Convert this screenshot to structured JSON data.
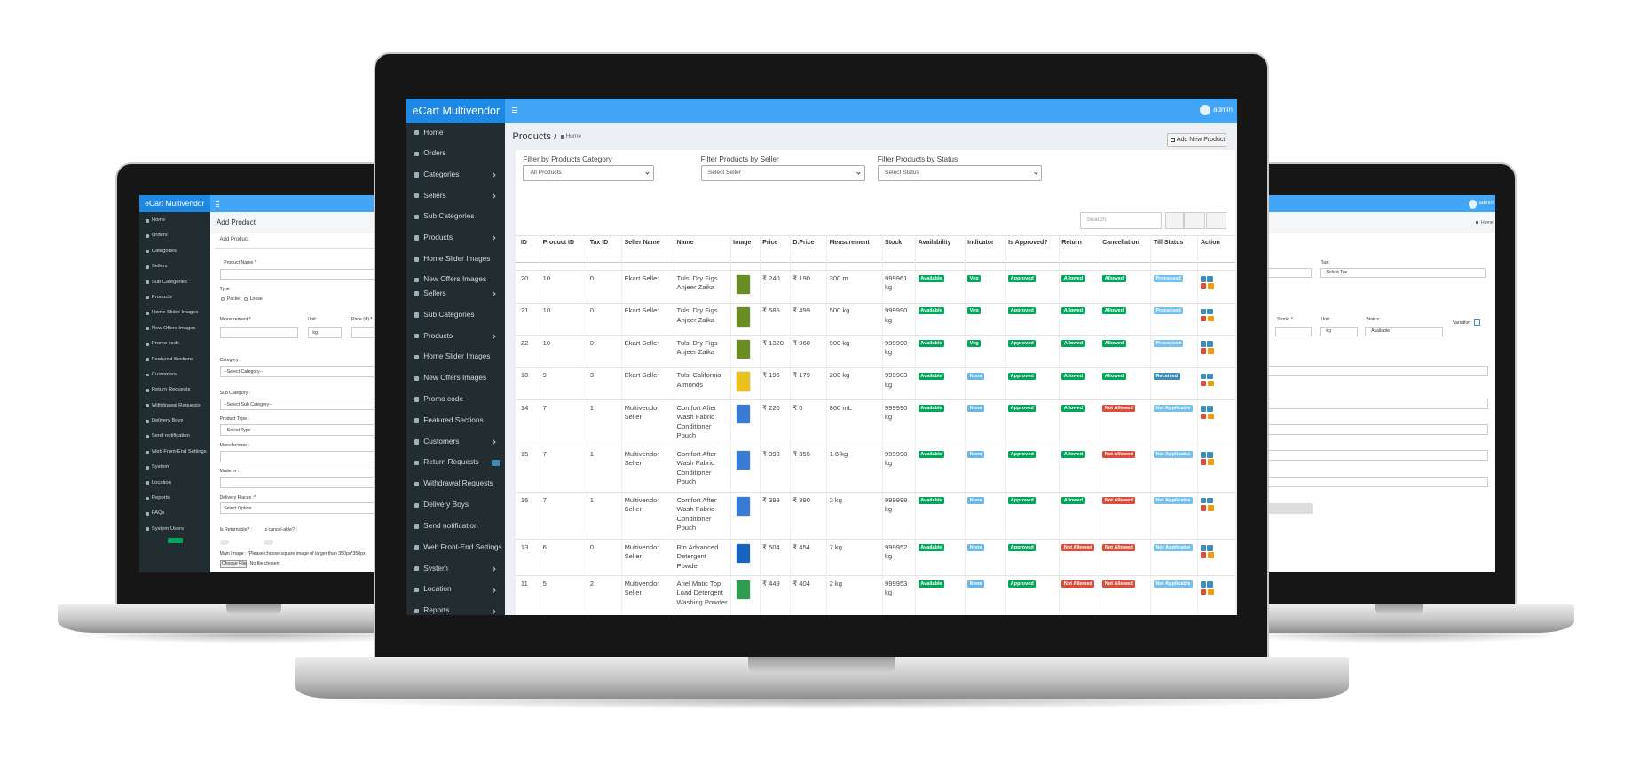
{
  "main": {
    "brand": "eCart Multivendor",
    "user": "admin",
    "sidebar": [
      "Home",
      "Orders",
      "Categories",
      "Sellers",
      "Sub Categories",
      "Products",
      "Home Slider Images",
      "New Offers Images",
      "Sellers",
      "Sub Categories",
      "Products",
      "Home Slider Images",
      "New Offers Images",
      "Promo code",
      "Featured Sections",
      "Customers",
      "Return Requests",
      "Withdrawal Requests",
      "Delivery Boys",
      "Send notification",
      "Web Front-End Settings",
      "System",
      "Location",
      "Reports"
    ],
    "page_title": "Products /",
    "breadcrumb": "Home",
    "add_button": "Add New Product",
    "filters": [
      {
        "label": "Filter by Products Category",
        "placeholder": "All Products"
      },
      {
        "label": "Filter Products by Seller",
        "placeholder": "Select Seller"
      },
      {
        "label": "Filter Products by Status",
        "placeholder": "Select Status"
      }
    ],
    "search_placeholder": "Search",
    "badge_colors": {
      "Available": "#00a65a",
      "Veg": "#00a65a",
      "Approved": "#00a65a",
      "Allowed": "#00a65a",
      "Not Allowed": "#dd4b39",
      "None": "#67b7e9",
      "Processed": "#74c0f0",
      "Not Applicable": "#74c0f0",
      "Received": "#3c8dbc"
    },
    "table": {
      "columns": [
        "ID",
        "Product ID",
        "Tax ID",
        "Seller Name",
        "Name",
        "Image",
        "Price",
        "D.Price",
        "Measurement",
        "Stock",
        "Availability",
        "Indicator",
        "Is Approved?",
        "Return",
        "Cancellation",
        "Till Status",
        "Action"
      ],
      "rows": [
        [
          20,
          10,
          0,
          "Ekart Seller",
          "Tulsi Dry Figs Anjeer Zaika",
          null,
          "₹ 240",
          "₹ 190",
          "300 m",
          "999961 kg",
          "Available",
          "Veg",
          "Approved",
          "Allowed",
          "Allowed",
          "Processed",
          null
        ],
        [
          21,
          10,
          0,
          "Ekart Seller",
          "Tulsi Dry Figs Anjeer Zaika",
          null,
          "₹ 585",
          "₹ 499",
          "500 kg",
          "999990 kg",
          "Available",
          "Veg",
          "Approved",
          "Allowed",
          "Allowed",
          "Processed",
          null
        ],
        [
          22,
          10,
          0,
          "Ekart Seller",
          "Tulsi Dry Figs Anjeer Zaika",
          null,
          "₹ 1320",
          "₹ 960",
          "900 kg",
          "999990 kg",
          "Available",
          "Veg",
          "Approved",
          "Allowed",
          "Allowed",
          "Processed",
          null
        ],
        [
          18,
          9,
          3,
          "Ekart Seller",
          "Tulsi California Almonds",
          null,
          "₹ 195",
          "₹ 179",
          "200 kg",
          "999903 kg",
          "Available",
          "None",
          "Approved",
          "Allowed",
          "Allowed",
          "Received",
          null
        ],
        [
          14,
          7,
          1,
          "Multivendor Seller",
          "Comfort After Wash Fabric Conditioner Pouch",
          null,
          "₹ 220",
          "₹ 0",
          "860 mL",
          "999990 kg",
          "Available",
          "None",
          "Approved",
          "Allowed",
          "Not Allowed",
          "Not Applicable",
          null
        ],
        [
          15,
          7,
          1,
          "Multivendor Seller",
          "Comfort After Wash Fabric Conditioner Pouch",
          null,
          "₹ 390",
          "₹ 355",
          "1.6 kg",
          "999998 kg",
          "Available",
          "None",
          "Approved",
          "Allowed",
          "Not Allowed",
          "Not Applicable",
          null
        ],
        [
          16,
          7,
          1,
          "Multivendor Seller",
          "Comfort After Wash Fabric Conditioner Pouch",
          null,
          "₹ 399",
          "₹ 390",
          "2 kg",
          "999998 kg",
          "Available",
          "None",
          "Approved",
          "Allowed",
          "Not Allowed",
          "Not Applicable",
          null
        ],
        [
          13,
          6,
          0,
          "Multivendor Seller",
          "Rin Advanced Detergent Powder",
          null,
          "₹ 504",
          "₹ 454",
          "7 kg",
          "999952 kg",
          "Available",
          "None",
          "Approved",
          "Not Allowed",
          "Not Allowed",
          "Not Applicable",
          null
        ],
        [
          11,
          5,
          2,
          "Multivendor Seller",
          "Ariel Matic Top Load Detergent Washing Powder",
          null,
          "₹ 449",
          "₹ 404",
          "2 kg",
          "999953 kg",
          "Available",
          "None",
          "Approved",
          "Not Allowed",
          "Not Allowed",
          "Not Applicable",
          null
        ]
      ]
    }
  },
  "left": {
    "brand": "eCart Multivendor",
    "sidebar": [
      "Home",
      "Orders",
      "Categories",
      "Sellers",
      "Sub Categories",
      "Products",
      "Home Slider Images",
      "New Offers Images",
      "Promo code",
      "Featured Sections",
      "Customers",
      "Return Requests",
      "Withdrawal Requests",
      "Delivery Boys",
      "Send notification",
      "Web Front-End Settings",
      "System",
      "Location",
      "Reports",
      "FAQs",
      "System Users"
    ],
    "page_title": "Add Product",
    "box_title": "Add Product",
    "form": [
      "Product Name *",
      "Type",
      "Packet",
      "Loose",
      "Measurement *",
      "Unit:",
      "Price (₹) *",
      "kg",
      "Category :",
      "--Select Category--",
      "Sub Category :",
      "--Select Sub Category--",
      "Product Type :",
      "--Select Type--",
      "Manufacturer :",
      "Made In :",
      "Delivery Places :*",
      "Select Option",
      "Is Returnable? :",
      "Is cancel-able? :",
      "Main Image : *Please choose square image of larger than 350px*350px",
      "Choose File",
      "No file chosen"
    ]
  },
  "right": {
    "user": "admin",
    "breadcrumb": "Home",
    "form": [
      "Tax:",
      "Select Tax",
      "Stock: *",
      "Unit:",
      "Status:",
      "kg",
      "Available",
      "Variation"
    ]
  }
}
